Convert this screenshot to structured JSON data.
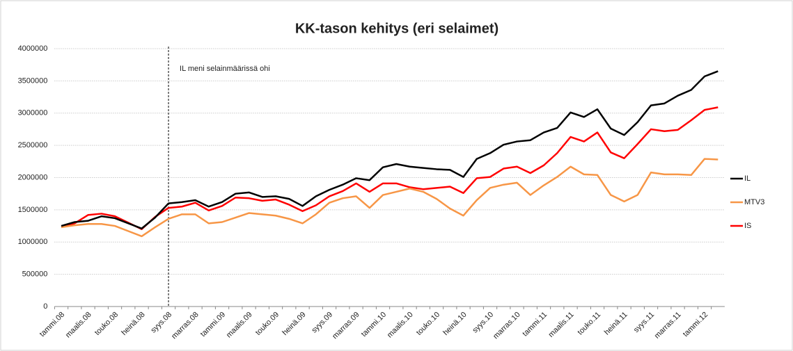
{
  "chart_data": {
    "type": "line",
    "title": "KK-tason kehitys (eri selaimet)",
    "annotation": {
      "text": "IL meni selainmäärissä ohi",
      "at": "syys.08"
    },
    "categories": [
      "tammi.08",
      null,
      "maalis.08",
      null,
      "touko.08",
      null,
      "heinä.08",
      null,
      "syys.08",
      null,
      "marras.08",
      null,
      "tammi.09",
      null,
      "maalis.09",
      null,
      "touko.09",
      null,
      "heinä.09",
      null,
      "syys.09",
      null,
      "marras.09",
      null,
      "tammi.10",
      null,
      "maalis.10",
      null,
      "touko.10",
      null,
      "heinä.10",
      null,
      "syys.10",
      null,
      "marras.10",
      null,
      "tammi.11",
      null,
      "maalis.11",
      null,
      "touko.11",
      null,
      "heinä.11",
      null,
      "syys.11",
      null,
      "marras.11",
      null,
      "tammi.12",
      null
    ],
    "series": [
      {
        "name": "IL",
        "color": "#000000",
        "values": [
          1250000,
          1310000,
          1330000,
          1400000,
          1370000,
          1290000,
          1210000,
          1380000,
          1600000,
          1620000,
          1650000,
          1550000,
          1620000,
          1750000,
          1770000,
          1700000,
          1710000,
          1670000,
          1560000,
          1710000,
          1810000,
          1890000,
          1990000,
          1960000,
          2160000,
          2210000,
          2170000,
          2150000,
          2130000,
          2120000,
          2010000,
          2290000,
          2380000,
          2510000,
          2560000,
          2580000,
          2700000,
          2770000,
          3010000,
          2940000,
          3060000,
          2760000,
          2660000,
          2860000,
          3120000,
          3150000,
          3270000,
          3360000,
          3570000,
          3650000
        ]
      },
      {
        "name": "MTV3",
        "color": "#f79646",
        "values": [
          1230000,
          1260000,
          1280000,
          1280000,
          1250000,
          1170000,
          1090000,
          1230000,
          1360000,
          1430000,
          1430000,
          1290000,
          1310000,
          1380000,
          1450000,
          1430000,
          1410000,
          1360000,
          1290000,
          1430000,
          1610000,
          1680000,
          1710000,
          1530000,
          1730000,
          1780000,
          1830000,
          1780000,
          1670000,
          1520000,
          1410000,
          1650000,
          1840000,
          1890000,
          1920000,
          1730000,
          1880000,
          2010000,
          2170000,
          2050000,
          2040000,
          1730000,
          1630000,
          1730000,
          2080000,
          2050000,
          2050000,
          2040000,
          2290000,
          2280000
        ]
      },
      {
        "name": "IS",
        "color": "#ff0000",
        "values": [
          1230000,
          1290000,
          1420000,
          1440000,
          1400000,
          1300000,
          1200000,
          1390000,
          1530000,
          1550000,
          1610000,
          1490000,
          1560000,
          1690000,
          1680000,
          1640000,
          1660000,
          1580000,
          1480000,
          1570000,
          1710000,
          1790000,
          1910000,
          1780000,
          1910000,
          1910000,
          1850000,
          1820000,
          1840000,
          1860000,
          1760000,
          1990000,
          2010000,
          2140000,
          2170000,
          2070000,
          2190000,
          2380000,
          2630000,
          2560000,
          2700000,
          2390000,
          2300000,
          2520000,
          2750000,
          2720000,
          2740000,
          2890000,
          3050000,
          3090000
        ]
      }
    ],
    "ylim": [
      0,
      4000000
    ],
    "yticks": [
      0,
      500000,
      1000000,
      1500000,
      2000000,
      2500000,
      3000000,
      3500000,
      4000000
    ],
    "grid": true,
    "legend": "right"
  }
}
